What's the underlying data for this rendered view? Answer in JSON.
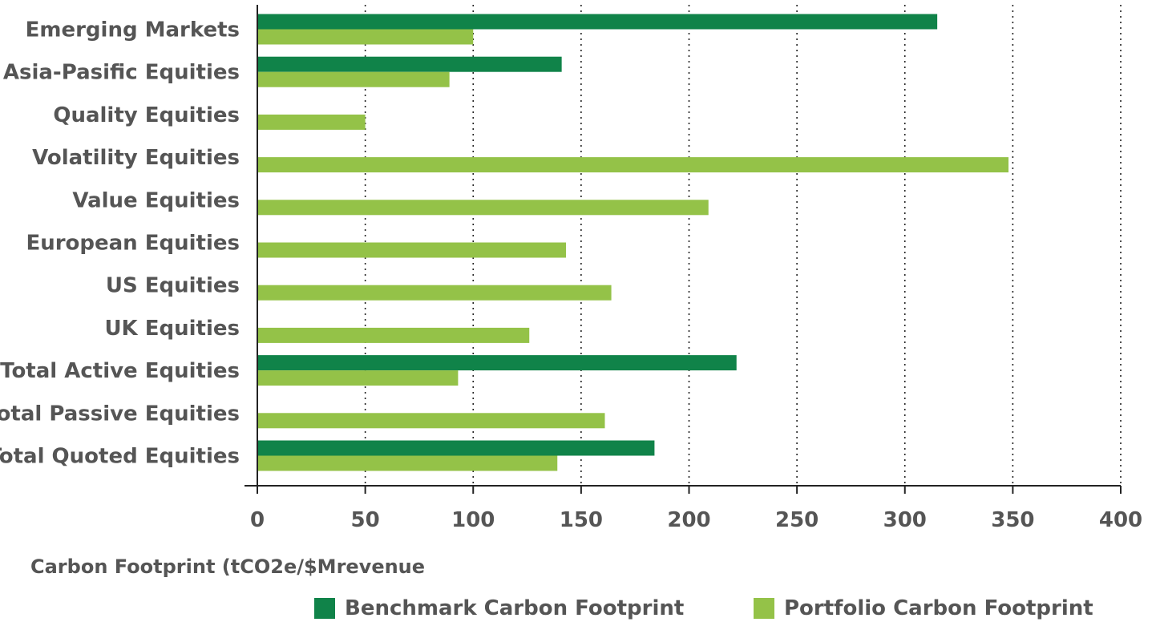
{
  "colors": {
    "benchmark": "#108349",
    "portfolio": "#94C248",
    "text": "#555555",
    "grid": "#222222"
  },
  "chart_data": {
    "type": "bar",
    "orientation": "horizontal",
    "categories": [
      "Emerging Markets",
      "Asia-Pasific Equities",
      "Quality Equities",
      "Volatility Equities",
      "Value Equities",
      "European Equities",
      "US Equities",
      "UK Equities",
      "Total Active Equities",
      "Total Passive Equities",
      "Total Quoted Equities"
    ],
    "series": [
      {
        "name": "Benchmark Carbon Footprint",
        "values": [
          315,
          141,
          null,
          null,
          null,
          null,
          null,
          null,
          222,
          null,
          184
        ]
      },
      {
        "name": "Portfolio Carbon Footprint",
        "values": [
          100,
          89,
          50,
          348,
          209,
          143,
          164,
          126,
          93,
          161,
          139
        ]
      }
    ],
    "xlabel": "Carbon Footprint (tCO2e/$Mrevenue",
    "xlim": [
      0,
      400
    ],
    "xticks": [
      "0",
      "50",
      "100",
      "150",
      "200",
      "250",
      "300",
      "350",
      "400"
    ],
    "grid": "vertical dotted",
    "legend": "bottom"
  }
}
